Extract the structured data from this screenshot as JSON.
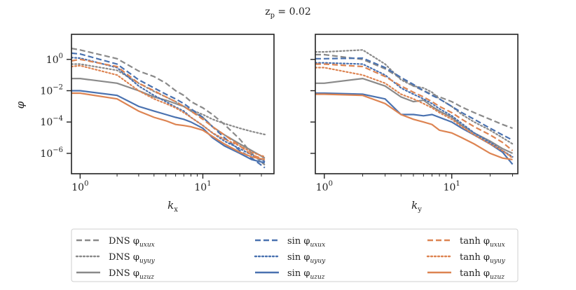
{
  "chart_data": {
    "type": "line",
    "title": "z_p = 0.02",
    "x_scale": "log",
    "y_scale": "log",
    "ylabel": "φ",
    "ylim_log10": [
      -7.3,
      1.6
    ],
    "y_ticks": [
      {
        "base": "10",
        "exp": "0"
      },
      {
        "base": "10",
        "exp": "−2"
      },
      {
        "base": "10",
        "exp": "−4"
      },
      {
        "base": "10",
        "exp": "−6"
      }
    ],
    "x_ticks": [
      {
        "base": "10",
        "exp": "0",
        "value": 1
      },
      {
        "base": "10",
        "exp": "1",
        "value": 10
      }
    ],
    "colors": {
      "DNS": "#8a8a8a",
      "sin": "#4a72b0",
      "tanh": "#dd8452"
    },
    "panels": [
      {
        "xlabel": "k_x",
        "xlim": [
          0.85,
          38
        ],
        "x": [
          0.85,
          1,
          2,
          3,
          4,
          5,
          6,
          7,
          8,
          10,
          12,
          15,
          20,
          25,
          32
        ],
        "series": [
          {
            "name": "DNS φ_uxux",
            "group": "DNS",
            "style": "dashed",
            "values": [
              5.0,
              4.0,
              1.1,
              0.18,
              0.08,
              0.03,
              0.01,
              0.005,
              0.002,
              0.0008,
              0.0003,
              7e-05,
              8e-06,
              1e-06,
              1.8e-07
            ]
          },
          {
            "name": "DNS φ_uyuy",
            "group": "DNS",
            "style": "dotted",
            "values": [
              0.5,
              0.5,
              0.2,
              0.03,
              0.009,
              0.004,
              0.002,
              0.001,
              0.0006,
              0.0003,
              0.00015,
              8e-05,
              4e-05,
              2.5e-05,
              1.6e-05
            ]
          },
          {
            "name": "DNS φ_uzuz",
            "group": "DNS",
            "style": "solid",
            "values": [
              0.06,
              0.06,
              0.03,
              0.01,
              0.004,
              0.0025,
              0.0015,
              0.001,
              0.0005,
              0.0002,
              5e-05,
              1.5e-05,
              4e-06,
              1.5e-06,
              5e-07
            ]
          },
          {
            "name": "sin φ_uxux",
            "group": "sin",
            "style": "dashed",
            "values": [
              2.5,
              2.2,
              0.5,
              0.05,
              0.015,
              0.006,
              0.003,
              0.0015,
              0.0007,
              0.0002,
              5e-05,
              1e-05,
              1.5e-06,
              5e-07,
              1.2e-07
            ]
          },
          {
            "name": "sin φ_uyuy",
            "group": "sin",
            "style": "dotted",
            "values": [
              1.3,
              1.2,
              0.3,
              0.02,
              0.005,
              0.002,
              0.0009,
              0.0005,
              0.0002,
              6e-05,
              2e-05,
              6e-06,
              2e-06,
              8e-07,
              3e-07
            ]
          },
          {
            "name": "sin φ_uzuz",
            "group": "sin",
            "style": "solid",
            "values": [
              0.01,
              0.01,
              0.005,
              0.001,
              0.0005,
              0.0003,
              0.0002,
              0.00015,
              0.0001,
              4e-05,
              1e-05,
              3e-06,
              1e-06,
              4e-07,
              2.5e-07
            ]
          },
          {
            "name": "tanh φ_uxux",
            "group": "tanh",
            "style": "dashed",
            "values": [
              0.8,
              1.0,
              0.35,
              0.03,
              0.01,
              0.004,
              0.002,
              0.001,
              0.0005,
              0.00015,
              5e-05,
              1.5e-05,
              3e-06,
              8e-07,
              4e-07
            ]
          },
          {
            "name": "tanh φ_uyuy",
            "group": "tanh",
            "style": "dotted",
            "values": [
              0.35,
              0.4,
              0.1,
              0.01,
              0.003,
              0.0015,
              0.0008,
              0.0004,
              0.0002,
              6e-05,
              2e-05,
              8e-06,
              3e-06,
              1.2e-06,
              6e-07
            ]
          },
          {
            "name": "tanh φ_uzuz",
            "group": "tanh",
            "style": "solid",
            "values": [
              0.007,
              0.007,
              0.003,
              0.0005,
              0.0002,
              0.00012,
              7e-05,
              6e-05,
              5e-05,
              3e-05,
              1.2e-05,
              4e-06,
              1.2e-06,
              6e-07,
              4e-07
            ]
          }
        ]
      },
      {
        "xlabel": "k_y",
        "xlim": [
          0.85,
          33
        ],
        "x": [
          0.85,
          1,
          2,
          3,
          4,
          5,
          6,
          7,
          8,
          10,
          12,
          15,
          20,
          25,
          30
        ],
        "series": [
          {
            "name": "DNS φ_uxux",
            "group": "DNS",
            "style": "dashed",
            "values": [
              2.0,
              2.0,
              1.0,
              0.25,
              0.06,
              0.02,
              0.01,
              0.006,
              0.004,
              0.002,
              0.0009,
              0.0004,
              0.00015,
              7e-05,
              4e-05
            ]
          },
          {
            "name": "DNS φ_uyuy",
            "group": "DNS",
            "style": "dotted",
            "values": [
              3.0,
              3.0,
              4.0,
              0.5,
              0.05,
              0.02,
              0.015,
              0.008,
              0.003,
              0.001,
              0.0003,
              0.0001,
              3e-05,
              1e-05,
              4e-06
            ]
          },
          {
            "name": "DNS φ_uzuz",
            "group": "DNS",
            "style": "solid",
            "values": [
              0.03,
              0.03,
              0.06,
              0.02,
              0.004,
              0.002,
              0.0025,
              0.001,
              0.0005,
              0.0002,
              6e-05,
              2e-05,
              6e-06,
              2e-06,
              1e-06
            ]
          },
          {
            "name": "sin φ_uxux",
            "group": "sin",
            "style": "dashed",
            "values": [
              1.1,
              1.1,
              1.2,
              0.3,
              0.07,
              0.025,
              0.01,
              0.005,
              0.003,
              0.001,
              0.0004,
              0.00015,
              4e-05,
              1.5e-05,
              7e-06
            ]
          },
          {
            "name": "sin φ_uyuy",
            "group": "sin",
            "style": "dotted",
            "values": [
              0.6,
              0.6,
              0.5,
              0.1,
              0.015,
              0.006,
              0.003,
              0.0015,
              0.0007,
              0.00025,
              8e-05,
              2e-05,
              5e-06,
              1.5e-06,
              6e-07
            ]
          },
          {
            "name": "sin φ_uzuz",
            "group": "sin",
            "style": "solid",
            "values": [
              0.007,
              0.007,
              0.006,
              0.003,
              0.0003,
              0.0003,
              0.00025,
              0.0003,
              0.0002,
              0.0001,
              4e-05,
              1.5e-05,
              4e-06,
              1.2e-06,
              2e-07
            ]
          },
          {
            "name": "tanh φ_uxux",
            "group": "tanh",
            "style": "dashed",
            "values": [
              0.5,
              0.5,
              0.35,
              0.08,
              0.02,
              0.008,
              0.004,
              0.002,
              0.001,
              0.0004,
              0.00015,
              5e-05,
              1.5e-05,
              5e-06,
              1.5e-06
            ]
          },
          {
            "name": "tanh φ_uyuy",
            "group": "tanh",
            "style": "dotted",
            "values": [
              0.3,
              0.3,
              0.1,
              0.03,
              0.006,
              0.003,
              0.0015,
              0.0008,
              0.0004,
              0.00015,
              5e-05,
              1.5e-05,
              4e-06,
              1.5e-06,
              5e-07
            ]
          },
          {
            "name": "tanh φ_uzuz",
            "group": "tanh",
            "style": "solid",
            "values": [
              0.006,
              0.006,
              0.005,
              0.0015,
              0.0003,
              0.00015,
              0.0001,
              7e-05,
              3e-05,
              2e-05,
              1e-05,
              4e-06,
              1e-06,
              5e-07,
              4e-07
            ]
          }
        ]
      }
    ],
    "legend": {
      "placement": "bottom",
      "columns": [
        [
          {
            "prefix": "DNS",
            "sub": "uxux",
            "style": "dashed",
            "group": "DNS"
          },
          {
            "prefix": "DNS",
            "sub": "uyuy",
            "style": "dotted",
            "group": "DNS"
          },
          {
            "prefix": "DNS",
            "sub": "uzuz",
            "style": "solid",
            "group": "DNS"
          }
        ],
        [
          {
            "prefix": "sin",
            "sub": "uxux",
            "style": "dashed",
            "group": "sin"
          },
          {
            "prefix": "sin",
            "sub": "uyuy",
            "style": "dotted",
            "group": "sin"
          },
          {
            "prefix": "sin",
            "sub": "uzuz",
            "style": "solid",
            "group": "sin"
          }
        ],
        [
          {
            "prefix": "tanh",
            "sub": "uxux",
            "style": "dashed",
            "group": "tanh"
          },
          {
            "prefix": "tanh",
            "sub": "uyuy",
            "style": "dotted",
            "group": "tanh"
          },
          {
            "prefix": "tanh",
            "sub": "uzuz",
            "style": "solid",
            "group": "tanh"
          }
        ]
      ]
    }
  }
}
